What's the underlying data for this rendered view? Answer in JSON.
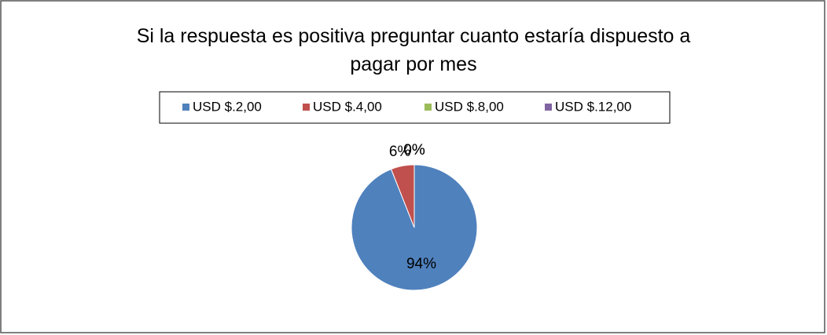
{
  "chart_data": {
    "type": "pie",
    "title": "Si la respuesta es positiva preguntar cuanto estaría dispuesto a pagar por mes",
    "categories": [
      "USD $.2,00",
      "USD $.4,00",
      "USD $.8,00",
      "USD $.12,00"
    ],
    "values": [
      94,
      6,
      0,
      0
    ],
    "value_labels": [
      "94%",
      "6%",
      "0%",
      "0%"
    ],
    "colors": [
      "#4f81bd",
      "#c0504d",
      "#9bbb59",
      "#8064a2"
    ],
    "legend": "top"
  }
}
